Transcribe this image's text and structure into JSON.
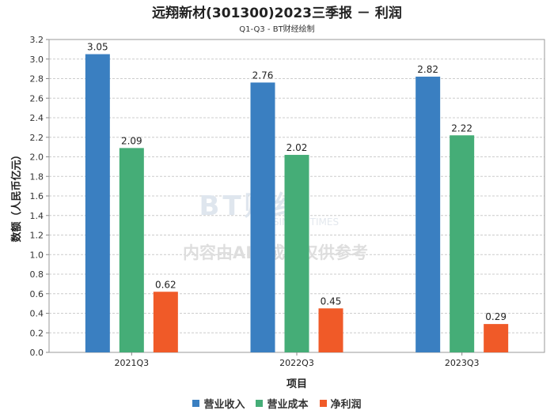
{
  "chart_data": {
    "type": "bar",
    "title": "远翔新材(301300)2023三季报 － 利润",
    "subtitle": "Q1-Q3 - BT财经绘制",
    "xlabel": "项目",
    "ylabel": "数额（人民币亿元）",
    "categories": [
      "2021Q3",
      "2022Q3",
      "2023Q3"
    ],
    "ylim": [
      0,
      3.2
    ],
    "yticks": [
      "0.0",
      "0.2",
      "0.4",
      "0.6",
      "0.8",
      "1.0",
      "1.2",
      "1.4",
      "1.6",
      "1.8",
      "2.0",
      "2.2",
      "2.4",
      "2.6",
      "2.8",
      "3.0",
      "3.2"
    ],
    "series": [
      {
        "name": "营业收入",
        "color": "#3a7fc1",
        "values": [
          3.05,
          2.76,
          2.82
        ],
        "labels": [
          "3.05",
          "2.76",
          "2.82"
        ]
      },
      {
        "name": "营业成本",
        "color": "#45ad77",
        "values": [
          2.09,
          2.02,
          2.22
        ],
        "labels": [
          "2.09",
          "2.02",
          "2.22"
        ]
      },
      {
        "name": "净利润",
        "color": "#f05a28",
        "values": [
          0.62,
          0.45,
          0.29
        ],
        "labels": [
          "0.62",
          "0.45",
          "0.29"
        ]
      }
    ],
    "grid": true,
    "legend": "bottom"
  },
  "watermark": {
    "logo": "BT财经",
    "logo_sub": "BUSINESS TIMES",
    "notice": "内容由AI生成，仅供参考"
  }
}
